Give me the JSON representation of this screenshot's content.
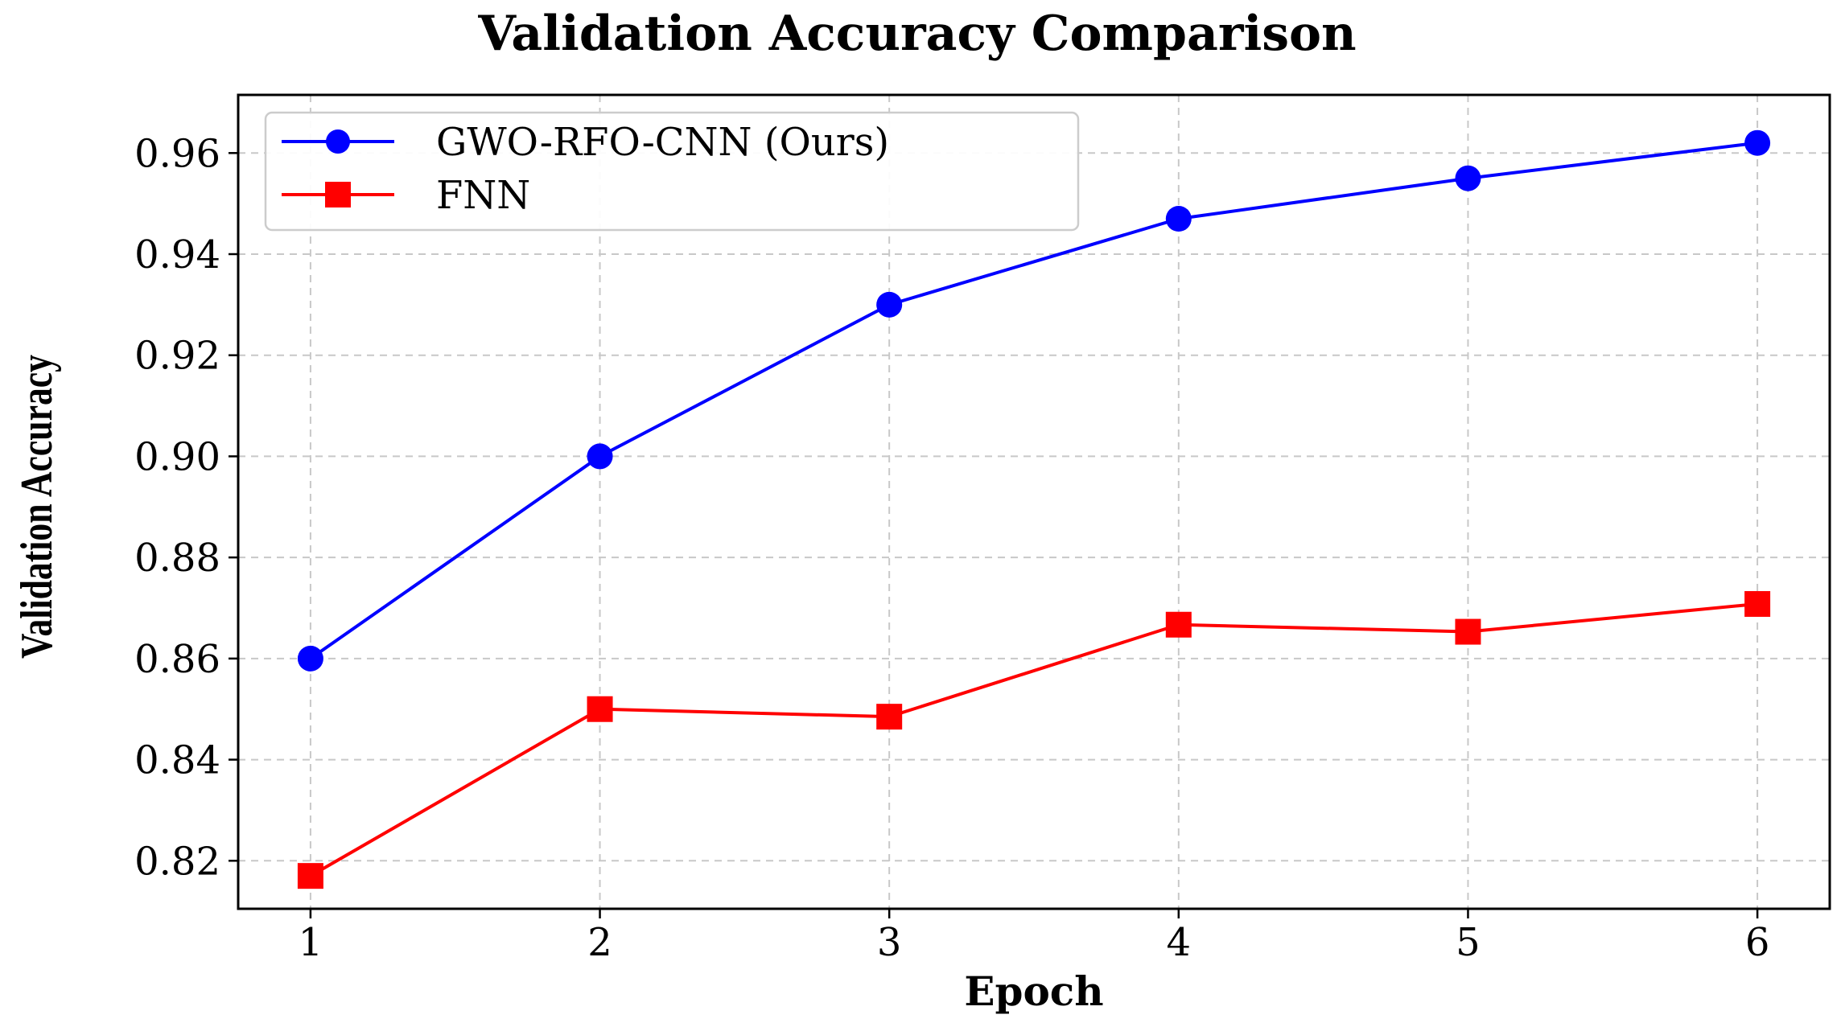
{
  "chart_data": {
    "type": "line",
    "title": "Validation Accuracy Comparison",
    "xlabel": "Epoch",
    "ylabel": "Validation Accuracy",
    "x": [
      1,
      2,
      3,
      4,
      5,
      6
    ],
    "x_tick_labels": [
      "1",
      "2",
      "3",
      "4",
      "5",
      "6"
    ],
    "y_ticks": [
      0.82,
      0.84,
      0.86,
      0.88,
      0.9,
      0.92,
      0.94,
      0.96
    ],
    "y_tick_labels": [
      "0.82",
      "0.84",
      "0.86",
      "0.88",
      "0.90",
      "0.92",
      "0.94",
      "0.96"
    ],
    "xlim": [
      0.75,
      6.25
    ],
    "ylim": [
      0.8105,
      0.9715
    ],
    "grid": true,
    "legend_position": "top-left",
    "series": [
      {
        "name": "GWO-RFO-CNN (Ours)",
        "values": [
          0.86,
          0.9,
          0.93,
          0.947,
          0.955,
          0.962
        ],
        "color": "#0000ff",
        "marker": "circle"
      },
      {
        "name": "FNN",
        "values": [
          0.817,
          0.85,
          0.8485,
          0.8667,
          0.8653,
          0.8708
        ],
        "color": "#ff0000",
        "marker": "square"
      }
    ]
  }
}
